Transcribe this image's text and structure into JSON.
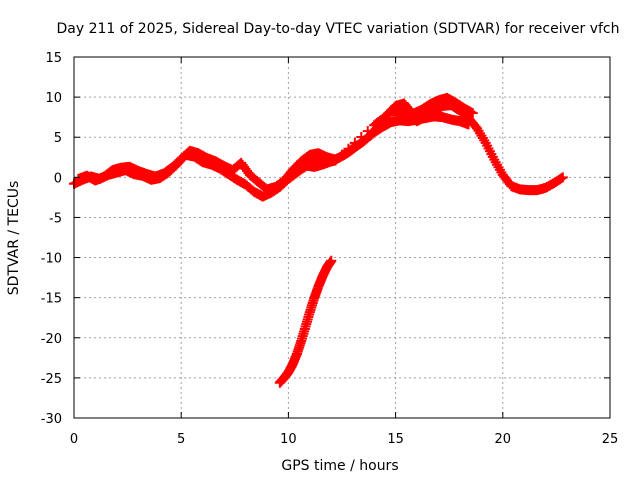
{
  "chart_data": {
    "type": "scatter",
    "title": "Day 211 of 2025, Sidereal Day-to-day VTEC variation (SDTVAR) for receiver vfch",
    "xlabel": "GPS time / hours",
    "ylabel": "SDTVAR / TECUs",
    "xlim": [
      0,
      25
    ],
    "ylim": [
      -30,
      15
    ],
    "xticks": [
      0,
      5,
      10,
      15,
      20,
      25
    ],
    "yticks": [
      -30,
      -25,
      -20,
      -15,
      -10,
      -5,
      0,
      5,
      10,
      15
    ],
    "xtick_labels": [
      "0",
      "5",
      "10",
      "15",
      "20",
      "25"
    ],
    "ytick_labels": [
      "-30",
      "-25",
      "-20",
      "-15",
      "-10",
      "-5",
      "0",
      "5",
      "10",
      "15"
    ],
    "grid": true,
    "marker": "+",
    "color": "#ff0000",
    "series": [
      {
        "name": "main-trace-a",
        "x": [
          0.0,
          0.4,
          0.8,
          1.2,
          1.6,
          2.0,
          2.4,
          2.8,
          3.2,
          3.6,
          4.0,
          4.4,
          4.8,
          5.2,
          5.6,
          6.0,
          6.4,
          6.8,
          7.2,
          7.6,
          8.0,
          8.4,
          8.8,
          9.2,
          9.6,
          10.0,
          10.4,
          10.8,
          11.2,
          11.6,
          12.0,
          12.4,
          12.8,
          13.2,
          13.6,
          14.0,
          14.4,
          14.8,
          15.2,
          15.6,
          16.0,
          16.4,
          16.8,
          17.2,
          17.6,
          18.0,
          18.4
        ],
        "y": [
          -0.8,
          -0.3,
          0.1,
          -0.2,
          0.3,
          0.6,
          0.9,
          0.4,
          0.2,
          -0.3,
          -0.1,
          0.6,
          1.6,
          2.8,
          2.6,
          1.9,
          1.6,
          1.1,
          0.4,
          -0.3,
          -0.9,
          -1.8,
          -2.4,
          -1.9,
          -1.2,
          -0.2,
          0.8,
          1.5,
          1.3,
          1.6,
          2.0,
          2.5,
          3.1,
          3.9,
          4.7,
          5.6,
          6.3,
          6.9,
          7.1,
          7.0,
          7.2,
          7.4,
          7.6,
          7.5,
          7.2,
          7.0,
          6.6
        ]
      },
      {
        "name": "main-trace-b",
        "x": [
          0.2,
          0.6,
          1.0,
          1.4,
          1.8,
          2.2,
          2.6,
          3.0,
          3.4,
          3.8,
          4.2,
          4.6,
          5.0,
          5.4,
          5.8,
          6.2,
          6.6,
          7.0,
          7.4,
          7.8,
          8.2,
          8.6,
          9.0,
          9.4,
          9.8,
          10.2,
          10.6,
          11.0,
          11.4,
          11.8,
          12.2,
          12.6,
          13.0,
          13.4,
          13.8,
          14.2,
          14.6,
          15.0,
          15.4,
          15.8,
          16.2,
          16.6,
          17.0,
          17.4,
          17.8,
          18.2,
          18.6
        ],
        "y": [
          -0.2,
          0.2,
          -0.4,
          0.1,
          0.9,
          1.2,
          1.3,
          0.8,
          0.4,
          0.1,
          0.5,
          1.3,
          2.3,
          3.3,
          3.0,
          2.4,
          2.0,
          1.4,
          0.9,
          1.8,
          0.3,
          -0.6,
          -1.5,
          -1.2,
          -0.4,
          0.9,
          2.0,
          2.8,
          3.0,
          2.5,
          2.2,
          2.8,
          3.6,
          4.3,
          5.2,
          6.4,
          7.8,
          8.9,
          9.2,
          7.9,
          8.4,
          9.1,
          9.6,
          9.9,
          9.3,
          8.6,
          8.0
        ]
      },
      {
        "name": "main-trace-c",
        "x": [
          9.0,
          9.4,
          9.8,
          10.2,
          10.6,
          11.0,
          11.4,
          11.8,
          12.2,
          14.0,
          14.4,
          14.8,
          15.2,
          15.6,
          16.0,
          16.4,
          16.8,
          17.2,
          17.6,
          18.0,
          18.4,
          18.8,
          19.2,
          19.6,
          20.0,
          20.4,
          20.8,
          21.2,
          21.6,
          22.0,
          22.4,
          22.8
        ],
        "y": [
          -2.0,
          -1.4,
          -0.6,
          0.2,
          1.0,
          1.7,
          1.8,
          1.9,
          2.1,
          6.5,
          7.3,
          8.2,
          8.3,
          7.6,
          7.0,
          7.6,
          8.2,
          8.9,
          9.0,
          8.3,
          7.4,
          6.1,
          4.3,
          2.2,
          0.3,
          -1.1,
          -1.5,
          -1.6,
          -1.6,
          -1.3,
          -0.7,
          0.0
        ]
      },
      {
        "name": "isolated-trace",
        "x": [
          9.6,
          9.8,
          10.0,
          10.2,
          10.4,
          10.6,
          10.8,
          11.0,
          11.2,
          11.4,
          11.6,
          11.8,
          12.0
        ],
        "y": [
          -25.6,
          -25.0,
          -24.3,
          -23.3,
          -22.0,
          -20.4,
          -18.6,
          -16.8,
          -15.1,
          -13.6,
          -12.3,
          -11.2,
          -10.4
        ]
      }
    ]
  }
}
